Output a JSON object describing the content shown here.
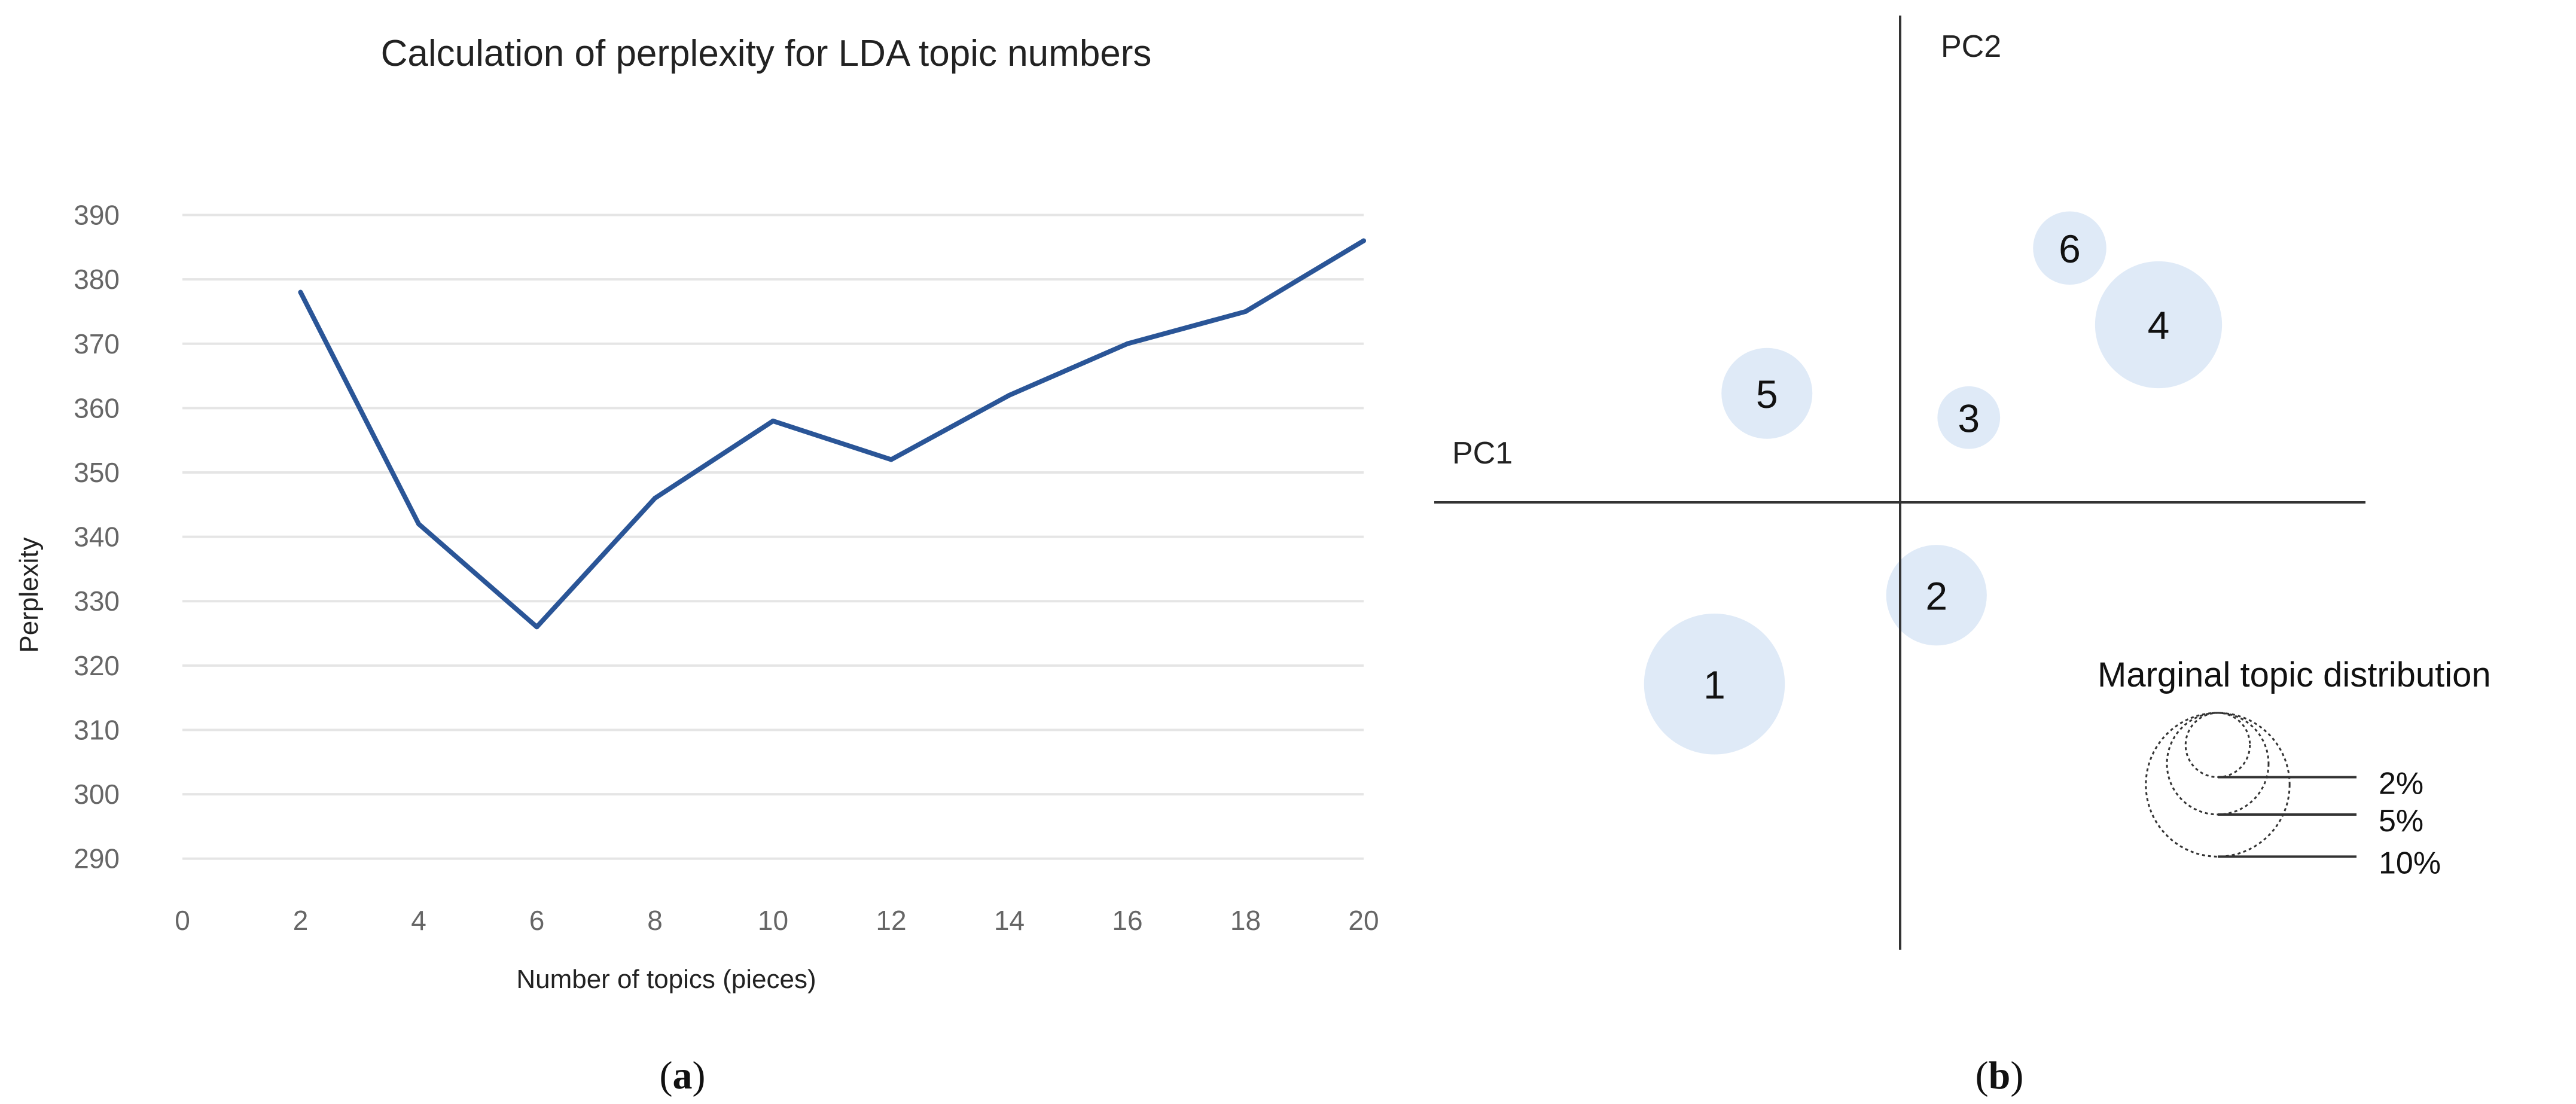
{
  "chart_data": [
    {
      "type": "line",
      "panel": "a",
      "title": "Calculation of perplexity for LDA topic numbers",
      "xlabel": "Number of topics (pieces)",
      "ylabel": "Perplexity",
      "x_ticks": [
        "0",
        "2",
        "4",
        "6",
        "8",
        "10",
        "12",
        "14",
        "16",
        "18",
        "20"
      ],
      "y_ticks": [
        "290",
        "300",
        "310",
        "320",
        "330",
        "340",
        "350",
        "360",
        "370",
        "380",
        "390"
      ],
      "xlim": [
        0,
        20
      ],
      "ylim": [
        287,
        392
      ],
      "grid": true,
      "series": [
        {
          "x": [
            2,
            4,
            6,
            8,
            10,
            12,
            14,
            16,
            18,
            20
          ],
          "values": [
            378,
            342,
            326,
            346,
            358,
            352,
            362,
            370,
            375,
            386
          ],
          "color": "#2a5597"
        }
      ]
    },
    {
      "type": "scatter",
      "panel": "b",
      "subtype": "bubble",
      "xlabel": "PC1",
      "ylabel": "PC2",
      "points": [
        {
          "label": "1",
          "pc1": -0.46,
          "pc2": -0.45,
          "distribution_pct": 9.6
        },
        {
          "label": "2",
          "pc1": 0.09,
          "pc2": -0.23,
          "distribution_pct": 4.9
        },
        {
          "label": "3",
          "pc1": 0.17,
          "pc2": 0.21,
          "distribution_pct": 1.9
        },
        {
          "label": "4",
          "pc1": 0.64,
          "pc2": 0.44,
          "distribution_pct": 7.8
        },
        {
          "label": "5",
          "pc1": -0.33,
          "pc2": 0.27,
          "distribution_pct": 4.0
        },
        {
          "label": "6",
          "pc1": 0.42,
          "pc2": 0.63,
          "distribution_pct": 2.6
        }
      ],
      "bubble_color": "#c5d8f0",
      "legend": {
        "title": "Marginal topic distribution",
        "items": [
          "2%",
          "5%",
          "10%"
        ],
        "values": [
          2,
          5,
          10
        ]
      }
    }
  ],
  "captions": {
    "a_open": "(",
    "a_letter": "a",
    "a_close": ")",
    "b_open": "(",
    "b_letter": "b",
    "b_close": ")"
  }
}
